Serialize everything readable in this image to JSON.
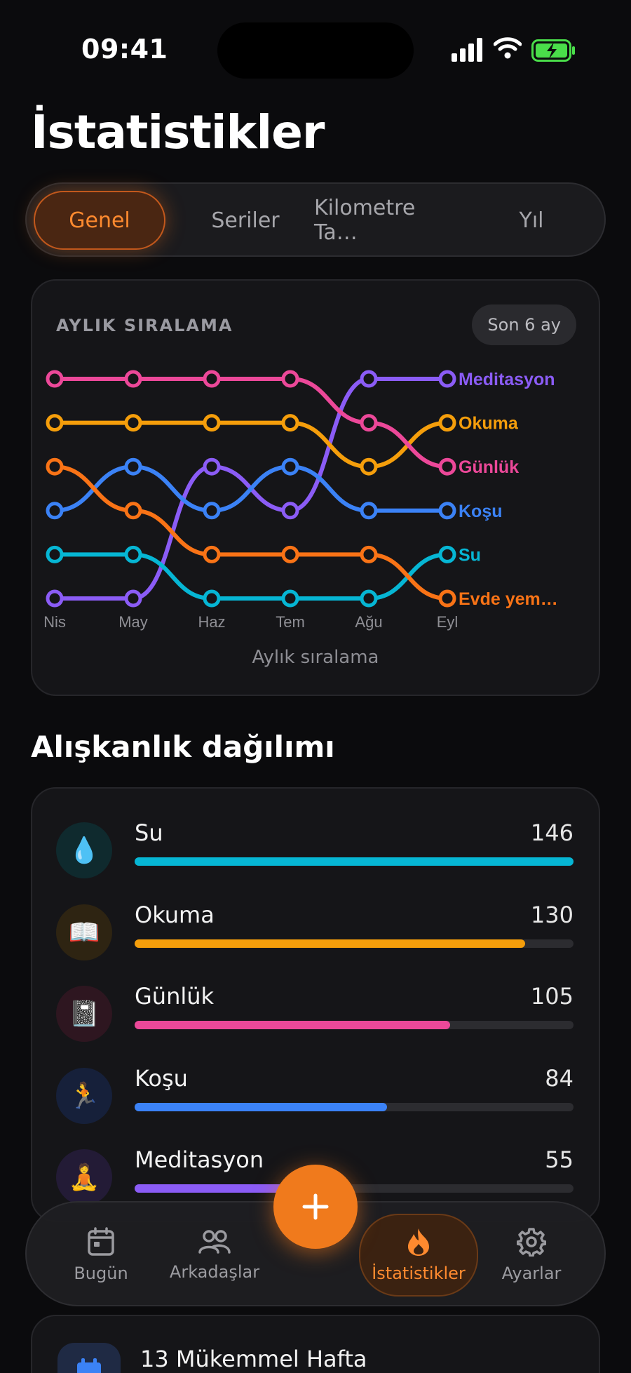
{
  "status": {
    "time": "09:41"
  },
  "page": {
    "title": "İstatistikler"
  },
  "tabs": [
    {
      "label": "Genel",
      "active": true
    },
    {
      "label": "Seriler",
      "active": false
    },
    {
      "label": "Kilometre Ta…",
      "active": false
    },
    {
      "label": "Yıl",
      "active": false
    }
  ],
  "chart_card": {
    "label": "AYLIK SIRALAMA",
    "range": "Son 6 ay",
    "caption": "Aylık sıralama"
  },
  "chart_data": {
    "type": "line",
    "subtype": "bump",
    "x": [
      "Nis",
      "May",
      "Haz",
      "Tem",
      "Ağu",
      "Eyl"
    ],
    "ylabel": "",
    "y_scale": "rank (1 = top)",
    "series": [
      {
        "name": "Meditasyon",
        "color": "#8b5cf6",
        "ranks": [
          6,
          6,
          3,
          4,
          1,
          1
        ]
      },
      {
        "name": "Okuma",
        "color": "#f59e0b",
        "ranks": [
          2,
          2,
          2,
          2,
          3,
          2
        ]
      },
      {
        "name": "Günlük",
        "color": "#ec4899",
        "ranks": [
          1,
          1,
          1,
          1,
          2,
          3
        ]
      },
      {
        "name": "Koşu",
        "color": "#3b82f6",
        "ranks": [
          4,
          3,
          4,
          3,
          4,
          4
        ]
      },
      {
        "name": "Su",
        "color": "#06b6d4",
        "ranks": [
          5,
          5,
          6,
          6,
          6,
          5
        ]
      },
      {
        "name": "Evde yem…",
        "color": "#f97316",
        "ranks": [
          3,
          4,
          5,
          5,
          5,
          6
        ]
      }
    ]
  },
  "distribution": {
    "title": "Alışkanlık dağılımı",
    "items": [
      {
        "name": "Su",
        "count": "146",
        "value": 146,
        "icon": "💧",
        "icon_name": "water-drop-icon",
        "color": "#06b6d4",
        "bg": "#0f2a2e"
      },
      {
        "name": "Okuma",
        "count": "130",
        "value": 130,
        "icon": "📖",
        "icon_name": "book-icon",
        "color": "#f59e0b",
        "bg": "#2e2412"
      },
      {
        "name": "Günlük",
        "count": "105",
        "value": 105,
        "icon": "📓",
        "icon_name": "notebook-icon",
        "color": "#ec4899",
        "bg": "#2e1620"
      },
      {
        "name": "Koşu",
        "count": "84",
        "value": 84,
        "icon": "🏃",
        "icon_name": "runner-icon",
        "color": "#3b82f6",
        "bg": "#16203a"
      },
      {
        "name": "Meditasyon",
        "count": "55",
        "value": 55,
        "icon": "🧘",
        "icon_name": "meditation-icon",
        "color": "#8b5cf6",
        "bg": "#231b36"
      }
    ]
  },
  "nav": {
    "items": [
      {
        "label": "Bugün",
        "icon": "calendar-icon"
      },
      {
        "label": "Arkadaşlar",
        "icon": "friends-icon"
      },
      {
        "label": "İstatistikler",
        "icon": "flame-icon",
        "active": true
      },
      {
        "label": "Ayarlar",
        "icon": "gear-icon"
      }
    ],
    "fab_icon": "plus-icon"
  },
  "peek": {
    "title": "13 Mükemmel Hafta",
    "icon": "calendar-icon"
  },
  "colors": {
    "accent": "#f07a1c",
    "background": "#0b0b0d"
  }
}
